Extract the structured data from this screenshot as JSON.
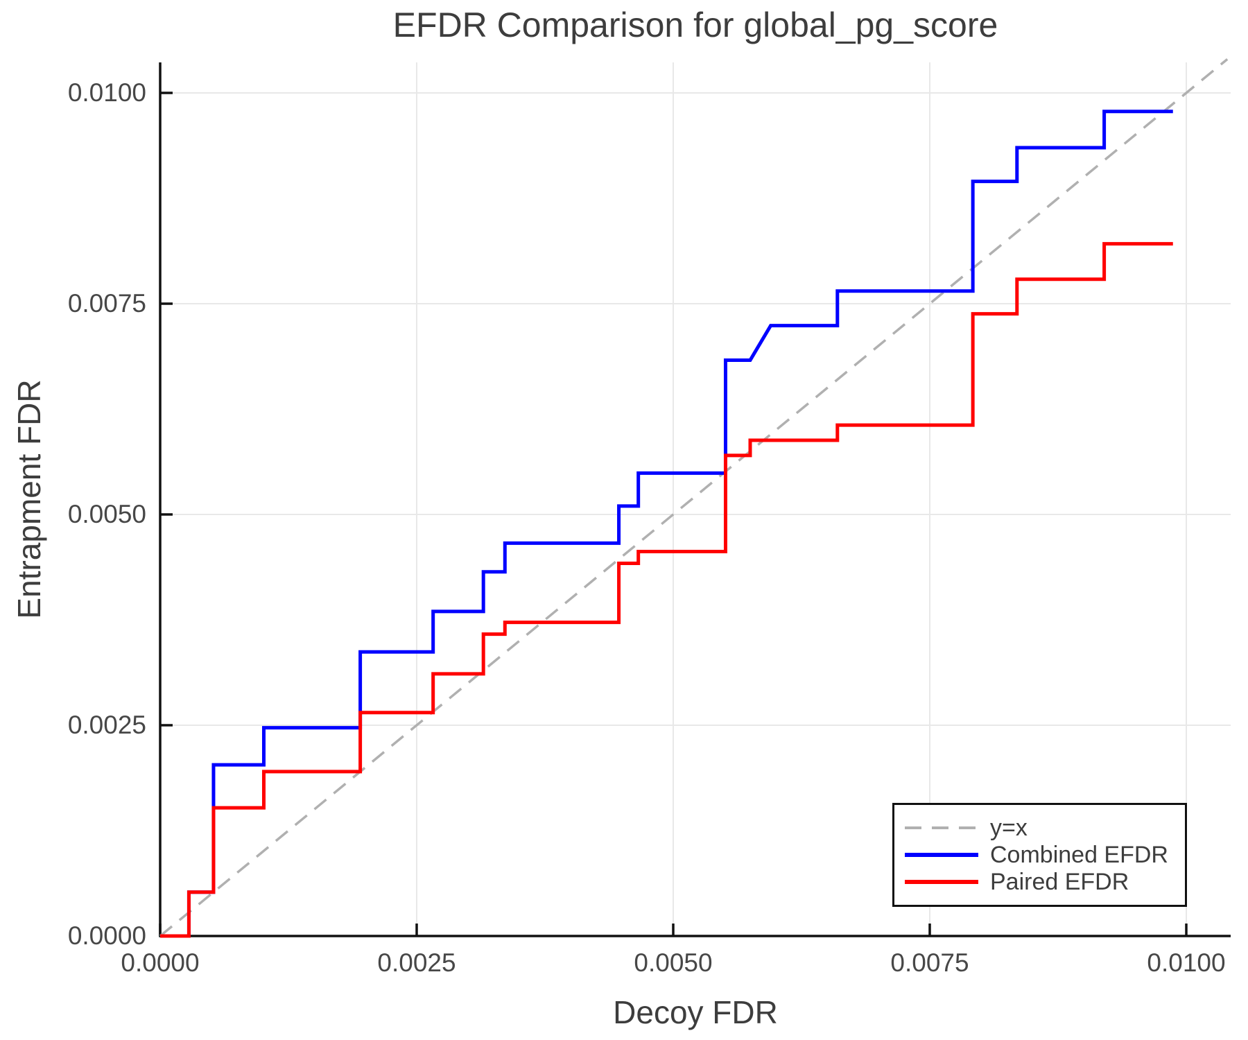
{
  "title": "EFDR Comparison for global_pg_score",
  "axes": {
    "xlabel": "Decoy FDR",
    "ylabel": "Entrapment FDR",
    "x_tick_values": [
      0,
      0.0025,
      0.005,
      0.0075,
      0.01
    ],
    "x_tick_labels": [
      "0.0000",
      "0.0025",
      "0.0050",
      "0.0075",
      "0.0100"
    ],
    "y_tick_values": [
      0,
      0.0025,
      0.005,
      0.0075,
      0.01
    ],
    "y_tick_labels": [
      "0.0000",
      "0.0025",
      "0.0050",
      "0.0075",
      "0.0100"
    ],
    "grid": true
  },
  "colors": {
    "identity": "#b0b0b0",
    "combined": "#0000ff",
    "paired": "#ff0000",
    "gridline": "#e8e8e8",
    "spine": "#111111",
    "text": "#3d3d3d"
  },
  "legend": {
    "position": "lower right",
    "entries": [
      {
        "label": "y=x",
        "color": "#b0b0b0",
        "style": "dashed"
      },
      {
        "label": "Combined EFDR",
        "color": "#0000ff",
        "style": "solid"
      },
      {
        "label": "Paired EFDR",
        "color": "#ff0000",
        "style": "solid"
      }
    ]
  },
  "chart_data": {
    "type": "line",
    "title": "EFDR Comparison for global_pg_score",
    "xlabel": "Decoy FDR",
    "ylabel": "Entrapment FDR",
    "xlim": [
      0,
      0.0104
    ],
    "ylim": [
      0,
      0.0104
    ],
    "legend_position": "lower right",
    "series": [
      {
        "name": "y=x",
        "color": "#b0b0b0",
        "style": "dashed",
        "points": [
          [
            0,
            0
          ],
          [
            0.0104,
            0.0104
          ]
        ]
      },
      {
        "name": "Combined EFDR",
        "color": "#0000ff",
        "style": "solid",
        "points": [
          [
            0,
            0
          ],
          [
            0.00028,
            0
          ],
          [
            0.00028,
            0.00052
          ],
          [
            0.00052,
            0.00052
          ],
          [
            0.00052,
            0.00203
          ],
          [
            0.00101,
            0.00203
          ],
          [
            0.00101,
            0.00247
          ],
          [
            0.00195,
            0.00247
          ],
          [
            0.00195,
            0.00337
          ],
          [
            0.00266,
            0.00337
          ],
          [
            0.00266,
            0.00385
          ],
          [
            0.00315,
            0.00385
          ],
          [
            0.00315,
            0.00432
          ],
          [
            0.00336,
            0.00432
          ],
          [
            0.00336,
            0.00466
          ],
          [
            0.00447,
            0.00466
          ],
          [
            0.00447,
            0.0051
          ],
          [
            0.00466,
            0.0051
          ],
          [
            0.00466,
            0.00549
          ],
          [
            0.00551,
            0.00549
          ],
          [
            0.00551,
            0.00683
          ],
          [
            0.00575,
            0.00683
          ],
          [
            0.00595,
            0.00724
          ],
          [
            0.0066,
            0.00724
          ],
          [
            0.0066,
            0.00765
          ],
          [
            0.00792,
            0.00765
          ],
          [
            0.00792,
            0.00895
          ],
          [
            0.00835,
            0.00895
          ],
          [
            0.00835,
            0.00935
          ],
          [
            0.0092,
            0.00935
          ],
          [
            0.0092,
            0.00978
          ],
          [
            0.00987,
            0.00978
          ]
        ]
      },
      {
        "name": "Paired EFDR",
        "color": "#ff0000",
        "style": "solid",
        "points": [
          [
            0,
            0
          ],
          [
            0.00028,
            0
          ],
          [
            0.00028,
            0.00052
          ],
          [
            0.00052,
            0.00052
          ],
          [
            0.00052,
            0.00152
          ],
          [
            0.00101,
            0.00152
          ],
          [
            0.00101,
            0.00195
          ],
          [
            0.00195,
            0.00195
          ],
          [
            0.00195,
            0.00265
          ],
          [
            0.00266,
            0.00265
          ],
          [
            0.00266,
            0.00311
          ],
          [
            0.00315,
            0.00311
          ],
          [
            0.00315,
            0.00358
          ],
          [
            0.00336,
            0.00358
          ],
          [
            0.00336,
            0.00372
          ],
          [
            0.00447,
            0.00372
          ],
          [
            0.00447,
            0.00442
          ],
          [
            0.00466,
            0.00442
          ],
          [
            0.00466,
            0.00456
          ],
          [
            0.00551,
            0.00456
          ],
          [
            0.00551,
            0.0057
          ],
          [
            0.00575,
            0.0057
          ],
          [
            0.00575,
            0.00588
          ],
          [
            0.0066,
            0.00588
          ],
          [
            0.0066,
            0.00606
          ],
          [
            0.00792,
            0.00606
          ],
          [
            0.00792,
            0.00738
          ],
          [
            0.00835,
            0.00738
          ],
          [
            0.00835,
            0.00779
          ],
          [
            0.0092,
            0.00779
          ],
          [
            0.0092,
            0.00821
          ],
          [
            0.00987,
            0.00821
          ]
        ]
      }
    ]
  }
}
